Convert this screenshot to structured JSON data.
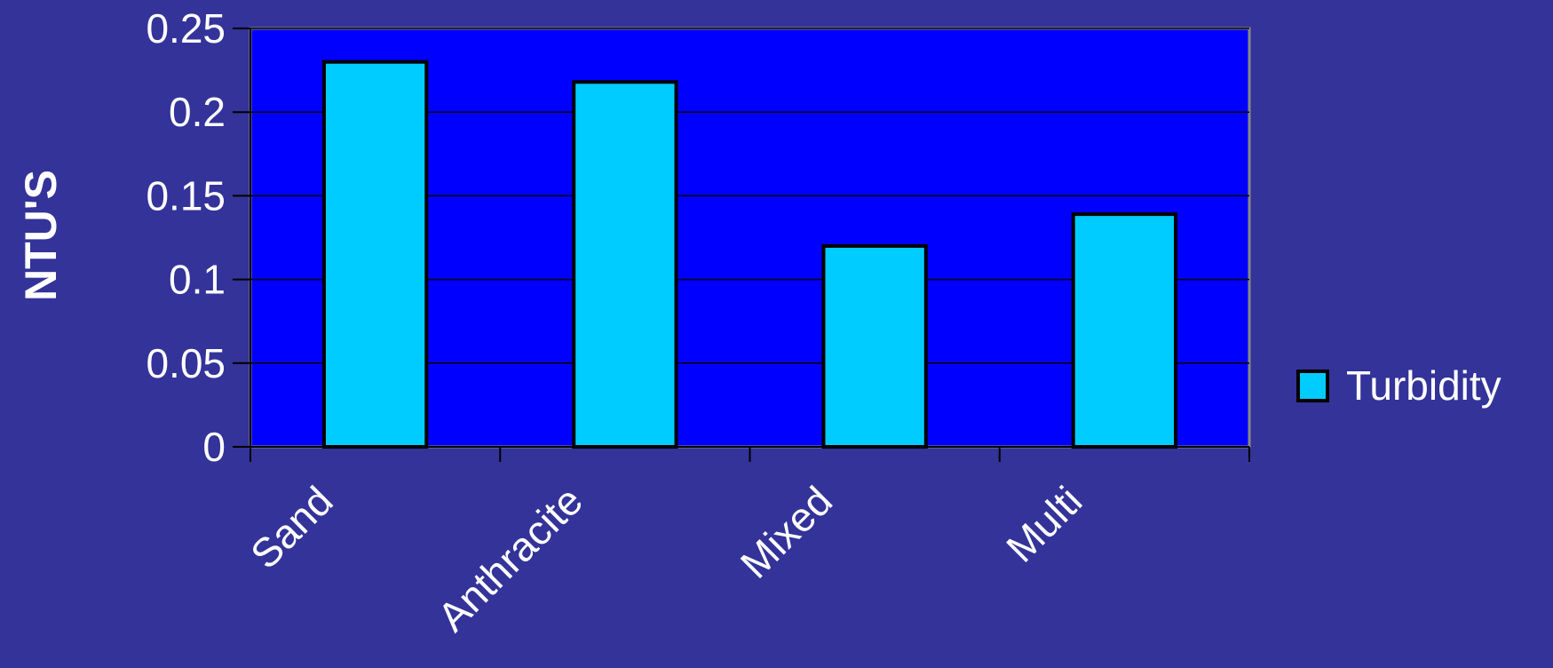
{
  "chart_data": {
    "type": "bar",
    "title": "",
    "xlabel": "",
    "ylabel": "NTU'S",
    "categories": [
      "Sand",
      "Anthracite",
      "Mixed",
      "Multi"
    ],
    "series": [
      {
        "name": "Turbidity",
        "values": [
          0.23,
          0.218,
          0.12,
          0.139
        ]
      }
    ],
    "ylim": [
      0,
      0.25
    ],
    "yticks": [
      0,
      0.05,
      0.1,
      0.15,
      0.2,
      0.25
    ],
    "ytick_labels": [
      "0",
      "0.05",
      "0.1",
      "0.15",
      "0.2",
      "0.25"
    ],
    "grid": true,
    "legend_position": "right",
    "colors": {
      "background": "#333399",
      "plot_area": "#0000ff",
      "bar_fill": "#00ccff",
      "bar_stroke": "#000000",
      "gridline": "#000000",
      "text": "#ffffff"
    }
  }
}
